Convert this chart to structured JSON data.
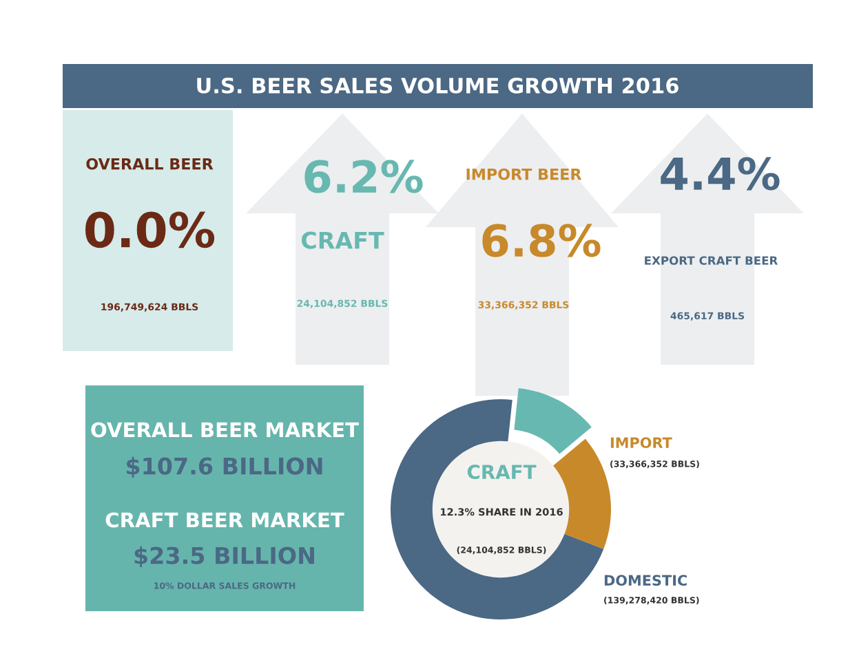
{
  "chart_data": [
    {
      "type": "other",
      "title": "U.S. BEER SALES VOLUME GROWTH 2016",
      "annotations": [
        "OVERALL BEER",
        "0.0%",
        "196,749,624 BBLS",
        "6.2%",
        "CRAFT",
        "24,104,852 BBLS",
        "IMPORT BEER",
        "6.8%",
        "33,366,352 BBLS",
        "4.4%",
        "EXPORT CRAFT BEER",
        "465,617 BBLS",
        "OVERALL BEER MARKET",
        "$107.6 BILLION",
        "CRAFT BEER MARKET",
        "$23.5 BILLION",
        "10% DOLLAR SALES GROWTH"
      ]
    },
    {
      "type": "donut",
      "categories": [
        "CRAFT",
        "IMPORT",
        "DOMESTIC"
      ],
      "values": [
        24104852,
        33366352,
        139278420
      ],
      "colors": [
        "#67b8b0",
        "#c8892a",
        "#4b6884"
      ],
      "value_labels": [
        null,
        "(33,366,352 BBLS)",
        "(139,278,420 BBLS)"
      ],
      "annotations": [
        "12.3% SHARE IN 2016",
        "(24,104,852 BBLS)"
      ]
    }
  ]
}
